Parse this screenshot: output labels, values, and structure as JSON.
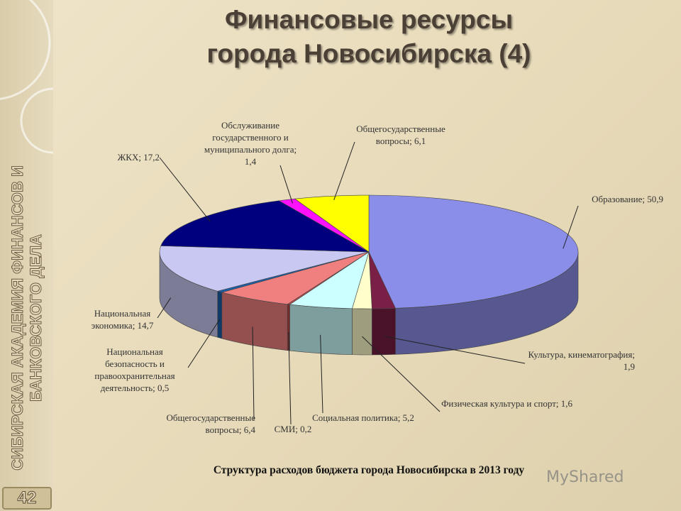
{
  "title_lines": [
    "Финансовые ресурсы",
    "города Новосибирска (4)"
  ],
  "sidebar_text": "СИБИРСКАЯ АКАДЕМИЯ ФИНАНСОВ И БАНКОВСКОГО ДЕЛА",
  "page_number": "42",
  "watermark": "MyShared",
  "chart_data": {
    "type": "pie",
    "caption": "Структура расходов бюджета города Новосибирска в 2013 году",
    "categories": [
      "Образование",
      "Культура, кинематография",
      "Физическая культура и спорт",
      "Социальная политика",
      "СМИ",
      "Общегосударственные вопросы",
      "Национальная безопасность и правоохранительная деятельность",
      "Национальная экономика",
      "ЖКХ",
      "Обслуживание государственного и муниципального долга",
      "Общегосударственные вопросы"
    ],
    "values": [
      50.9,
      1.9,
      1.6,
      5.2,
      0.2,
      6.4,
      0.5,
      14.7,
      17.2,
      1.4,
      6.1
    ],
    "value_labels": [
      "50,9",
      "1,9",
      "1,6",
      "5,2",
      "0,2",
      "6,4",
      "0,5",
      "14,7",
      "17,2",
      "1,4",
      "6,1"
    ],
    "colors": [
      "#8b8ee8",
      "#7a1f45",
      "#ffffcc",
      "#ccffff",
      "#c04545",
      "#f08080",
      "#1b5fa8",
      "#c8c8f2",
      "#00007e",
      "#ff10ff",
      "#ffff00"
    ]
  }
}
